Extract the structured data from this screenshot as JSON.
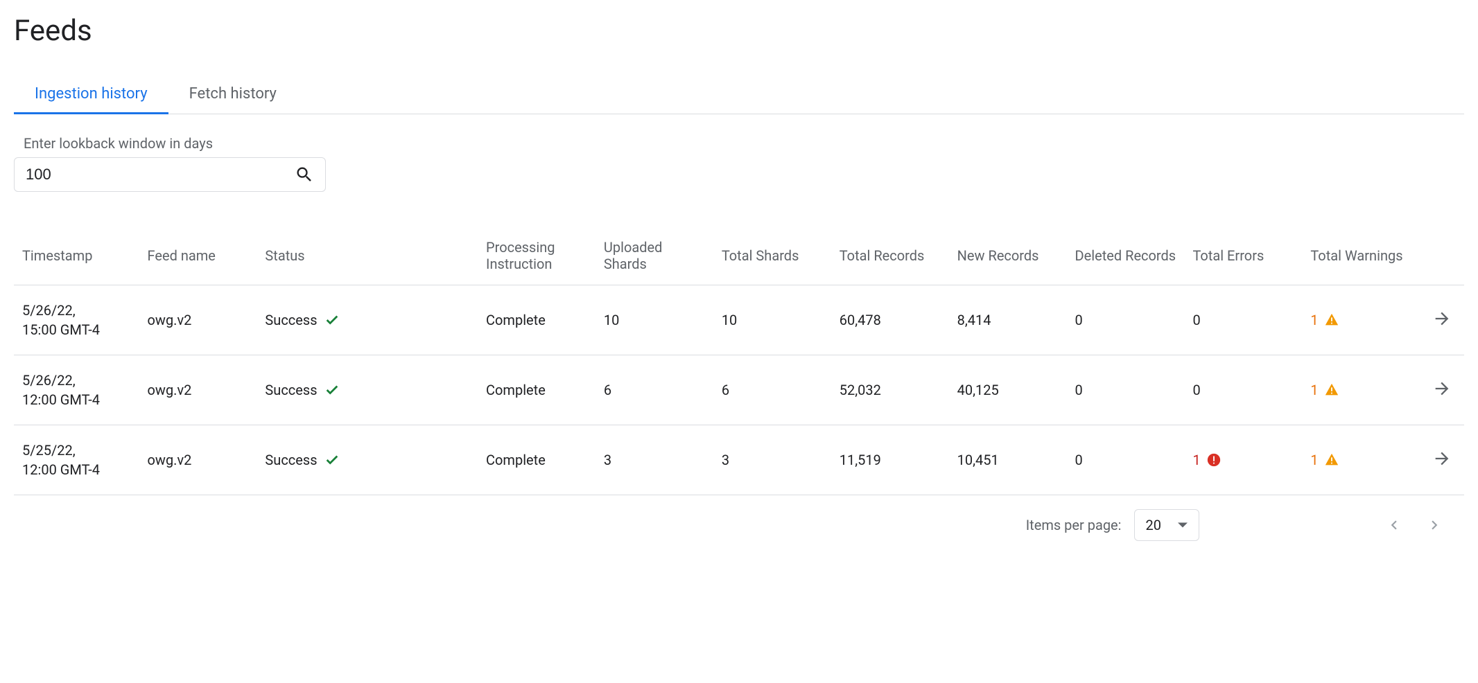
{
  "page": {
    "title": "Feeds"
  },
  "tabs": [
    {
      "label": "Ingestion history",
      "active": true
    },
    {
      "label": "Fetch history",
      "active": false
    }
  ],
  "lookback": {
    "label": "Enter lookback window in days",
    "value": "100"
  },
  "table": {
    "columns": [
      "Timestamp",
      "Feed name",
      "Status",
      "Processing Instruction",
      "Uploaded Shards",
      "Total Shards",
      "Total Records",
      "New Records",
      "Deleted Records",
      "Total Errors",
      "Total Warnings"
    ],
    "rows": [
      {
        "timestamp": "5/26/22,\n15:00 GMT-4",
        "feed_name": "owg.v2",
        "status": "Success",
        "processing_instruction": "Complete",
        "uploaded_shards": "10",
        "total_shards": "10",
        "total_records": "60,478",
        "new_records": "8,414",
        "deleted_records": "0",
        "total_errors": "0",
        "has_error_icon": false,
        "total_warnings": "1",
        "has_warning_icon": true
      },
      {
        "timestamp": "5/26/22,\n12:00 GMT-4",
        "feed_name": "owg.v2",
        "status": "Success",
        "processing_instruction": "Complete",
        "uploaded_shards": "6",
        "total_shards": "6",
        "total_records": "52,032",
        "new_records": "40,125",
        "deleted_records": "0",
        "total_errors": "0",
        "has_error_icon": false,
        "total_warnings": "1",
        "has_warning_icon": true
      },
      {
        "timestamp": "5/25/22,\n12:00 GMT-4",
        "feed_name": "owg.v2",
        "status": "Success",
        "processing_instruction": "Complete",
        "uploaded_shards": "3",
        "total_shards": "3",
        "total_records": "11,519",
        "new_records": "10,451",
        "deleted_records": "0",
        "total_errors": "1",
        "has_error_icon": true,
        "total_warnings": "1",
        "has_warning_icon": true
      }
    ]
  },
  "pagination": {
    "label": "Items per page:",
    "value": "20"
  },
  "colors": {
    "primary": "#1a73e8",
    "success": "#188038",
    "error": "#c5221f",
    "error_bg": "#d93025",
    "warning": "#e8710a",
    "warning_bg": "#f29900",
    "text_primary": "#202124",
    "text_secondary": "#5f6368",
    "border": "#dadce0"
  }
}
